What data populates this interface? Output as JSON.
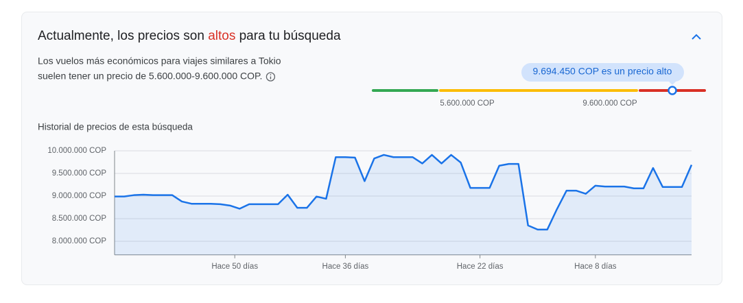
{
  "header": {
    "title_before": "Actualmente, los precios son ",
    "title_highlight": "altos",
    "title_after": " para tu búsqueda"
  },
  "description": {
    "line1": "Los vuelos más económicos para viajes similares a Tokio",
    "line2": "suelen tener un precio de 5.600.000-9.600.000 COP."
  },
  "price_gauge": {
    "tooltip": "9.694.450 COP es un precio alto",
    "low_label": "5.600.000 COP",
    "high_label": "9.600.000 COP"
  },
  "chart_data": {
    "type": "line",
    "title": "Historial de precios de esta búsqueda",
    "x": [
      0,
      1,
      2,
      3,
      4,
      5,
      6,
      7,
      8,
      9,
      10,
      11,
      12,
      13,
      14,
      15,
      16,
      17,
      18,
      19,
      20,
      21,
      22,
      23,
      24,
      25,
      26,
      27,
      28,
      29,
      30,
      31,
      32,
      33,
      34,
      35,
      36,
      37,
      38,
      39,
      40,
      41,
      42,
      43,
      44,
      45,
      46,
      47,
      48,
      49,
      50,
      51,
      52,
      53,
      54,
      55,
      56,
      57,
      58,
      59,
      60
    ],
    "series": [
      {
        "color": "#1a73e8",
        "values": [
          8990000,
          8990000,
          9020000,
          9030000,
          9020000,
          9020000,
          9020000,
          8880000,
          8830000,
          8830000,
          8830000,
          8820000,
          8790000,
          8720000,
          8820000,
          8820000,
          8820000,
          8820000,
          9030000,
          8740000,
          8740000,
          8990000,
          8940000,
          9860000,
          9860000,
          9850000,
          9330000,
          9830000,
          9910000,
          9860000,
          9860000,
          9860000,
          9720000,
          9910000,
          9720000,
          9910000,
          9740000,
          9180000,
          9180000,
          9180000,
          9670000,
          9710000,
          9710000,
          8350000,
          8260000,
          8260000,
          8710000,
          9120000,
          9120000,
          9050000,
          9230000,
          9210000,
          9210000,
          9210000,
          9170000,
          9170000,
          9620000,
          9200000,
          9200000,
          9200000,
          9690000
        ]
      }
    ],
    "xlim": [
      0,
      60
    ],
    "xticks": [
      {
        "value": 12.5,
        "label": "Hace 50 días"
      },
      {
        "value": 24,
        "label": "Hace 36 días"
      },
      {
        "value": 38,
        "label": "Hace 22 días"
      },
      {
        "value": 50,
        "label": "Hace 8 días"
      }
    ],
    "ylim": [
      7700000,
      10000000
    ],
    "yticks": [
      {
        "value": 8000000,
        "label": "8.000.000 COP"
      },
      {
        "value": 8500000,
        "label": "8.500.000 COP"
      },
      {
        "value": 9000000,
        "label": "9.000.000 COP"
      },
      {
        "value": 9500000,
        "label": "9.500.000 COP"
      },
      {
        "value": 10000000,
        "label": "10.000.000 COP"
      }
    ],
    "grid": true
  }
}
